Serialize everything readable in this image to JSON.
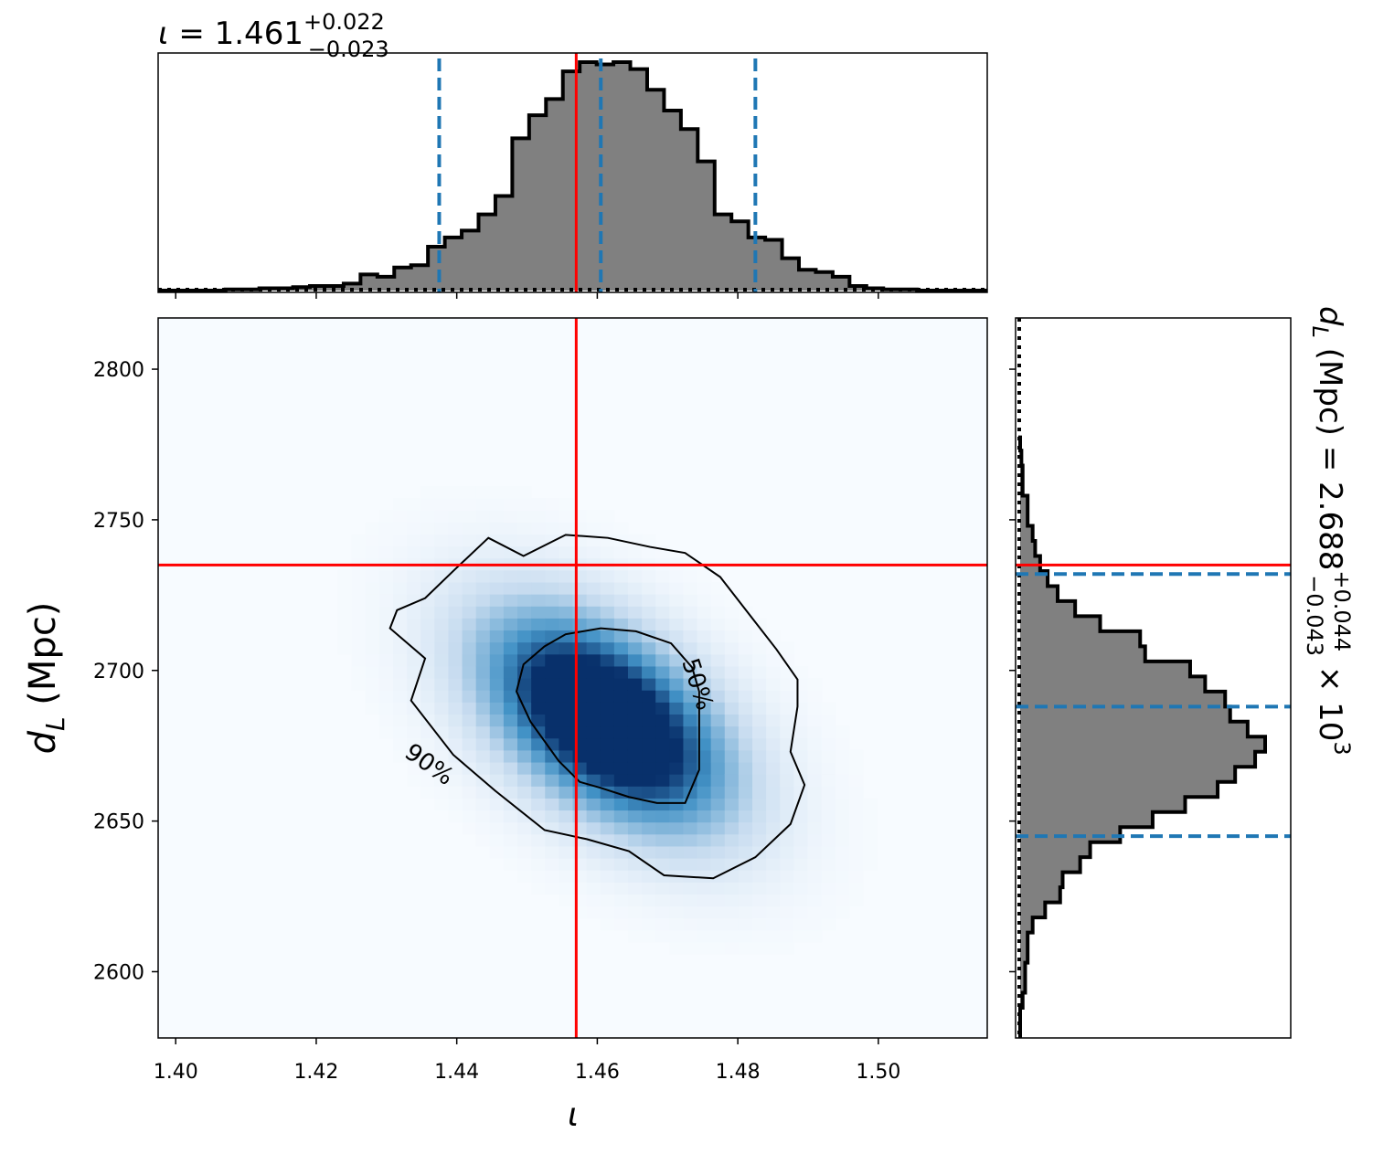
{
  "chart_data": [
    {
      "panel": "top-marginal",
      "type": "histogram",
      "title": {
        "symbol": "ι",
        "text": " = 1.461",
        "sup": "+0.022",
        "sub": "−0.023"
      },
      "x_range": [
        1.3975,
        1.5155
      ],
      "quantile_lines": [
        1.4375,
        1.4605,
        1.4825
      ],
      "truth_line": 1.457,
      "bin_edges": [
        1.3975,
        1.3999,
        1.4023,
        1.4047,
        1.4071,
        1.4095,
        1.4119,
        1.4143,
        1.4167,
        1.4191,
        1.4215,
        1.4239,
        1.4263,
        1.4287,
        1.4311,
        1.4335,
        1.4359,
        1.4383,
        1.4407,
        1.4431,
        1.4455,
        1.4479,
        1.4503,
        1.4527,
        1.4551,
        1.4575,
        1.4599,
        1.4623,
        1.4647,
        1.4671,
        1.4695,
        1.4719,
        1.4743,
        1.4767,
        1.4791,
        1.4815,
        1.4839,
        1.4863,
        1.4887,
        1.4911,
        1.4935,
        1.4959,
        1.4983,
        1.5007,
        1.5031,
        1.5055,
        1.5079,
        1.5103,
        1.5127,
        1.5155
      ],
      "counts": [
        0,
        0,
        0,
        0,
        0.005,
        0.005,
        0.01,
        0.01,
        0.015,
        0.02,
        0.02,
        0.03,
        0.07,
        0.06,
        0.1,
        0.11,
        0.19,
        0.23,
        0.26,
        0.33,
        0.41,
        0.66,
        0.76,
        0.83,
        0.95,
        0.99,
        0.98,
        0.99,
        0.96,
        0.87,
        0.78,
        0.7,
        0.56,
        0.33,
        0.3,
        0.23,
        0.22,
        0.14,
        0.09,
        0.08,
        0.06,
        0.02,
        0.01,
        0.005,
        0.005,
        0,
        0,
        0,
        0,
        0
      ],
      "prior_line": "dotted"
    },
    {
      "panel": "joint-density",
      "type": "heatmap",
      "xlabel": "ι",
      "ylabel_symbol": "d",
      "ylabel_sub": "L",
      "ylabel_unit": " (Mpc)",
      "x_range": [
        1.3975,
        1.5155
      ],
      "y_range": [
        2578,
        2817
      ],
      "x_ticks": [
        "1.40",
        "1.42",
        "1.44",
        "1.46",
        "1.48",
        "1.50"
      ],
      "x_tick_values": [
        1.4,
        1.42,
        1.44,
        1.46,
        1.48,
        1.5
      ],
      "y_ticks": [
        "2600",
        "2650",
        "2700",
        "2750",
        "2800"
      ],
      "y_tick_values": [
        2600,
        2650,
        2700,
        2750,
        2800
      ],
      "peaks": [
        {
          "x": 1.458,
          "y": 2689,
          "weight": 1.0
        },
        {
          "x": 1.4655,
          "y": 2676,
          "weight": 0.75
        }
      ],
      "contours": [
        {
          "label": "50%",
          "points": [
            [
              1.4525,
              2708
            ],
            [
              1.4555,
              2712
            ],
            [
              1.4605,
              2714
            ],
            [
              1.4655,
              2713
            ],
            [
              1.4705,
              2709
            ],
            [
              1.4735,
              2701
            ],
            [
              1.4745,
              2693
            ],
            [
              1.4745,
              2680
            ],
            [
              1.4745,
              2667
            ],
            [
              1.4725,
              2656
            ],
            [
              1.4685,
              2656
            ],
            [
              1.4645,
              2658
            ],
            [
              1.4605,
              2661
            ],
            [
              1.4575,
              2663
            ],
            [
              1.4545,
              2670
            ],
            [
              1.4505,
              2683
            ],
            [
              1.4485,
              2693
            ],
            [
              1.4495,
              2702
            ],
            [
              1.4525,
              2708
            ]
          ]
        },
        {
          "label": "90%",
          "points": [
            [
              1.4445,
              2744
            ],
            [
              1.4495,
              2738
            ],
            [
              1.4555,
              2745
            ],
            [
              1.4615,
              2744
            ],
            [
              1.4675,
              2741
            ],
            [
              1.4725,
              2739
            ],
            [
              1.4775,
              2731
            ],
            [
              1.4815,
              2719
            ],
            [
              1.4855,
              2707
            ],
            [
              1.4885,
              2697
            ],
            [
              1.4885,
              2688
            ],
            [
              1.4875,
              2673
            ],
            [
              1.4895,
              2662
            ],
            [
              1.4875,
              2649
            ],
            [
              1.4825,
              2638
            ],
            [
              1.4765,
              2631
            ],
            [
              1.4695,
              2632
            ],
            [
              1.4645,
              2640
            ],
            [
              1.4585,
              2644
            ],
            [
              1.4525,
              2647
            ],
            [
              1.4455,
              2660
            ],
            [
              1.4395,
              2672
            ],
            [
              1.4335,
              2690
            ],
            [
              1.4355,
              2704
            ],
            [
              1.4305,
              2714
            ],
            [
              1.4315,
              2720
            ],
            [
              1.4355,
              2724
            ],
            [
              1.4395,
              2733
            ],
            [
              1.4445,
              2744
            ]
          ]
        }
      ],
      "truth": {
        "x": 1.457,
        "y": 2735
      }
    },
    {
      "panel": "right-marginal",
      "type": "histogram",
      "orientation": "horizontal",
      "title": {
        "symbol": "d",
        "sub_symbol": "L",
        "text": " (Mpc) = 2.688",
        "sup": "+0.044",
        "sub": "−0.043",
        "suffix": " × 10",
        "exp": "3"
      },
      "y_range": [
        2578,
        2817
      ],
      "quantile_lines": [
        2645,
        2688,
        2732
      ],
      "truth_line": 2735,
      "bin_edges": [
        2578,
        2583,
        2588,
        2593,
        2598,
        2603,
        2608,
        2613,
        2618,
        2623,
        2628,
        2633,
        2638,
        2643,
        2648,
        2653,
        2658,
        2663,
        2668,
        2673,
        2678,
        2683,
        2688,
        2693,
        2698,
        2703,
        2708,
        2713,
        2718,
        2723,
        2728,
        2733,
        2738,
        2743,
        2748,
        2753,
        2758,
        2763,
        2768,
        2773,
        2778
      ],
      "counts": [
        0,
        0,
        0.01,
        0.02,
        0.02,
        0.03,
        0.03,
        0.05,
        0.1,
        0.16,
        0.17,
        0.24,
        0.28,
        0.4,
        0.53,
        0.66,
        0.79,
        0.86,
        0.94,
        0.98,
        0.91,
        0.84,
        0.82,
        0.74,
        0.68,
        0.5,
        0.48,
        0.32,
        0.22,
        0.15,
        0.11,
        0.08,
        0.06,
        0.05,
        0.03,
        0.03,
        0.01,
        0.01,
        0.005,
        0,
        0
      ],
      "prior_line": "dotted"
    }
  ],
  "colors": {
    "truth": "#ff0000",
    "quantile": "#1f77b4",
    "hist_fill": "#808080",
    "hist_edge": "#000000",
    "heat_low": "#f7fbff",
    "heat_high": "#08306b",
    "contour": "#000000"
  }
}
